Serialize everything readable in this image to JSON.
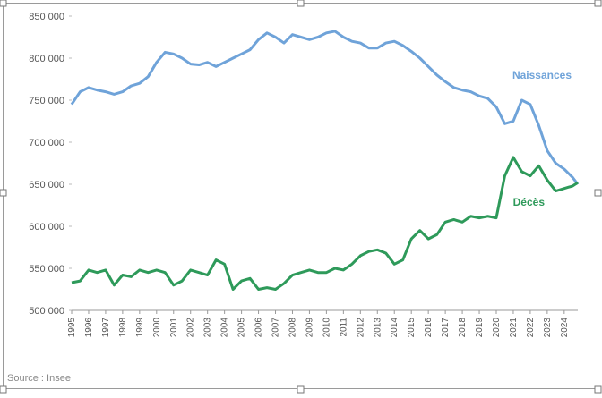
{
  "chart_data": {
    "type": "line",
    "source": "Source : Insee",
    "xlim": [
      1995,
      2024.8
    ],
    "xticks": [
      1995,
      1996,
      1997,
      1998,
      1999,
      2000,
      2001,
      2002,
      2003,
      2004,
      2005,
      2006,
      2007,
      2008,
      2009,
      2010,
      2011,
      2012,
      2013,
      2014,
      2015,
      2016,
      2017,
      2018,
      2019,
      2020,
      2021,
      2022,
      2023,
      2024
    ],
    "ylim": [
      500000,
      850000
    ],
    "yticks": [
      {
        "value": 500000,
        "label": "500 000"
      },
      {
        "value": 550000,
        "label": "550 000"
      },
      {
        "value": 600000,
        "label": "600 000"
      },
      {
        "value": 650000,
        "label": "650 000"
      },
      {
        "value": 700000,
        "label": "700 000"
      },
      {
        "value": 750000,
        "label": "750 000"
      },
      {
        "value": 800000,
        "label": "800 000"
      },
      {
        "value": 850000,
        "label": "850 000"
      }
    ],
    "x": [
      1995,
      1995.5,
      1996,
      1996.5,
      1997,
      1997.5,
      1998,
      1998.5,
      1999,
      1999.5,
      2000,
      2000.5,
      2001,
      2001.5,
      2002,
      2002.5,
      2003,
      2003.5,
      2004,
      2004.5,
      2005,
      2005.5,
      2006,
      2006.5,
      2007,
      2007.5,
      2008,
      2008.5,
      2009,
      2009.5,
      2010,
      2010.5,
      2011,
      2011.5,
      2012,
      2012.5,
      2013,
      2013.5,
      2014,
      2014.5,
      2015,
      2015.5,
      2016,
      2016.5,
      2017,
      2017.5,
      2018,
      2018.5,
      2019,
      2019.5,
      2020,
      2020.5,
      2021,
      2021.5,
      2022,
      2022.5,
      2023,
      2023.5,
      2024,
      2024.5,
      2024.8
    ],
    "series": [
      {
        "name": "Naissances",
        "color": "#6fa3d9",
        "values": [
          745000,
          760000,
          765000,
          762000,
          760000,
          757000,
          760000,
          767000,
          770000,
          778000,
          795000,
          807000,
          805000,
          800000,
          793000,
          792000,
          795000,
          790000,
          795000,
          800000,
          805000,
          810000,
          822000,
          830000,
          825000,
          818000,
          828000,
          825000,
          822000,
          825000,
          830000,
          832000,
          825000,
          820000,
          818000,
          812000,
          812000,
          818000,
          820000,
          815000,
          808000,
          800000,
          790000,
          780000,
          772000,
          765000,
          762000,
          760000,
          755000,
          752000,
          742000,
          722000,
          725000,
          750000,
          745000,
          720000,
          690000,
          675000,
          668000,
          658000,
          650000
        ]
      },
      {
        "name": "Décès",
        "color": "#2e9a5a",
        "values": [
          533000,
          535000,
          548000,
          545000,
          548000,
          530000,
          542000,
          540000,
          548000,
          545000,
          548000,
          545000,
          530000,
          535000,
          548000,
          545000,
          542000,
          560000,
          555000,
          525000,
          535000,
          538000,
          525000,
          527000,
          525000,
          532000,
          542000,
          545000,
          548000,
          545000,
          545000,
          550000,
          548000,
          555000,
          565000,
          570000,
          572000,
          568000,
          555000,
          560000,
          585000,
          595000,
          585000,
          590000,
          605000,
          608000,
          605000,
          612000,
          610000,
          612000,
          610000,
          660000,
          682000,
          665000,
          660000,
          672000,
          655000,
          642000,
          645000,
          648000,
          652000
        ]
      }
    ]
  }
}
